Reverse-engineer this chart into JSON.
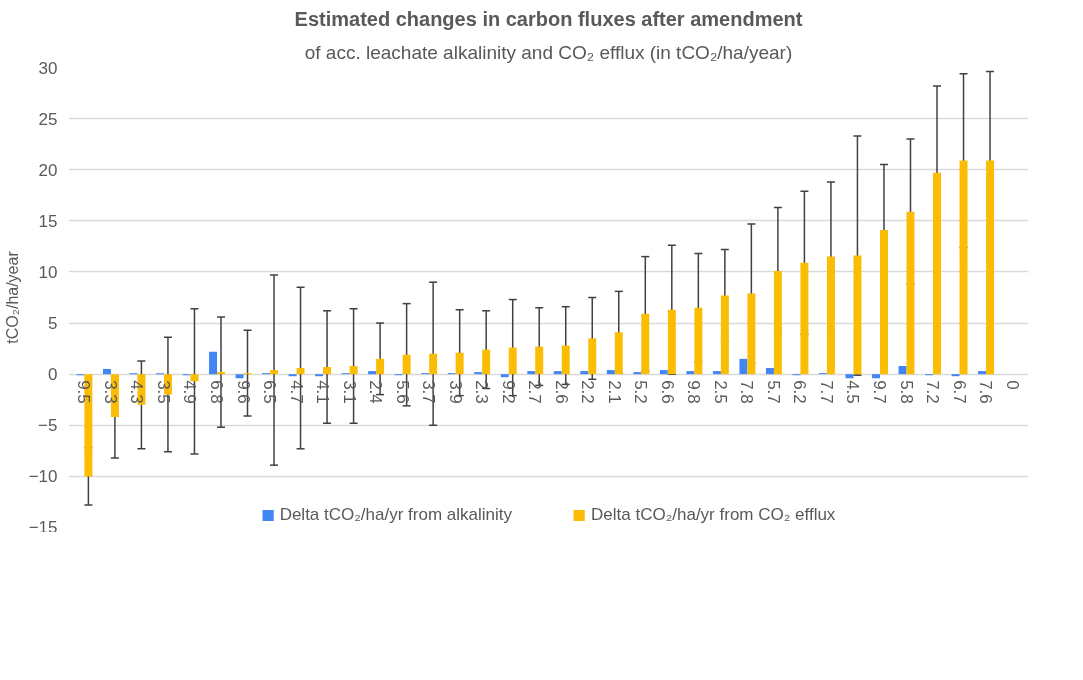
{
  "chart_data": {
    "type": "bar",
    "title": "Estimated changes in carbon fluxes after amendment",
    "subtitle": "of acc. leachate alkalinity and CO₂ efflux (in tCO₂/ha/year)",
    "ylabel": "tCO₂/ha/year",
    "categories": [
      "9.5",
      "3.3",
      "4.3",
      "3.5",
      "4.9",
      "6.8",
      "9.6",
      "6.5",
      "4.7",
      "4.1",
      "3.1",
      "2.4",
      "5.6",
      "3.7",
      "3.9",
      "2.3",
      "9.2",
      "2.7",
      "2.6",
      "2.2",
      "2.1",
      "5.2",
      "6.6",
      "9.8",
      "2.5",
      "7.8",
      "5.7",
      "6.2",
      "7.7",
      "4.5",
      "9.7",
      "5.8",
      "7.2",
      "6.7",
      "7.6",
      "0"
    ],
    "series": [
      {
        "name": "Delta tCO₂/ha/yr from alkalinity",
        "color": "#4285f4",
        "values": [
          -0.1,
          0.5,
          0.1,
          0.1,
          -0.1,
          2.2,
          -0.4,
          0.1,
          -0.2,
          -0.2,
          0.1,
          0.3,
          -0.1,
          0.1,
          0.1,
          0.2,
          -0.3,
          0.3,
          0.3,
          0.3,
          0.4,
          0.2,
          0.4,
          0.3,
          0.3,
          1.5,
          0.6,
          -0.1,
          0.1,
          -0.4,
          -0.4,
          0.8,
          -0.1,
          -0.2,
          0.3,
          null
        ]
      },
      {
        "name": "Delta tCO₂/ha/yr from CO₂ efflux",
        "color": "#fbbc04",
        "values": [
          -10.0,
          -4.2,
          -3.0,
          -2.0,
          -0.7,
          0.2,
          0.1,
          0.4,
          0.6,
          0.7,
          0.8,
          1.5,
          1.9,
          2.0,
          2.1,
          2.4,
          2.6,
          2.7,
          2.8,
          3.5,
          4.1,
          5.9,
          6.3,
          6.5,
          7.7,
          7.9,
          10.1,
          10.9,
          11.5,
          11.6,
          14.1,
          15.9,
          19.7,
          20.9,
          20.9,
          null
        ],
        "errors": [
          2.8,
          4.0,
          4.3,
          5.6,
          7.1,
          5.4,
          4.2,
          9.3,
          7.9,
          5.5,
          5.6,
          3.5,
          5.0,
          7.0,
          4.2,
          3.8,
          4.7,
          3.8,
          3.8,
          4.0,
          4.0,
          5.6,
          6.3,
          5.3,
          4.5,
          6.8,
          6.2,
          7.0,
          7.3,
          11.7,
          6.4,
          7.1,
          8.5,
          8.5,
          8.7,
          null
        ]
      }
    ],
    "ylim": [
      -15,
      30
    ],
    "yticks": [
      -15,
      -10,
      -5,
      0,
      5,
      10,
      15,
      20,
      25,
      30
    ],
    "grid": "y",
    "legend": "bottom"
  }
}
